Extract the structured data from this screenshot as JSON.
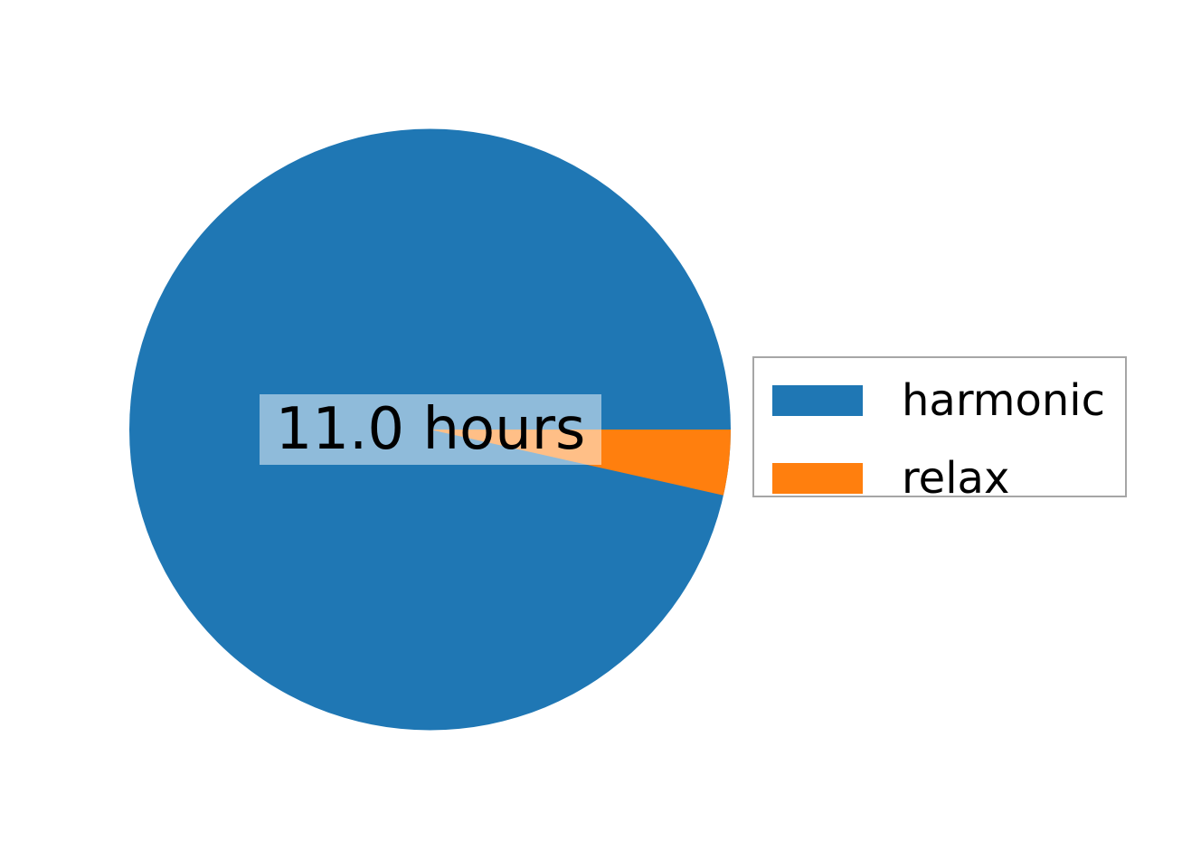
{
  "chart_data": {
    "type": "pie",
    "labels": [
      "harmonic",
      "relax"
    ],
    "values": [
      11.0,
      0.4
    ],
    "unit": "hours",
    "colors": [
      "#1f77b4",
      "#ff7f0e"
    ],
    "center_label": "11.0 hours",
    "center_label_bg": "rgba(255,255,255,0.5)",
    "start_angle_deg": 0,
    "direction": "counterclockwise",
    "legend_position": "center right",
    "legend": {
      "entries": [
        {
          "label": "harmonic",
          "color": "#1f77b4"
        },
        {
          "label": "relax",
          "color": "#ff7f0e"
        }
      ]
    },
    "title": "",
    "background_color": "#ffffff"
  }
}
